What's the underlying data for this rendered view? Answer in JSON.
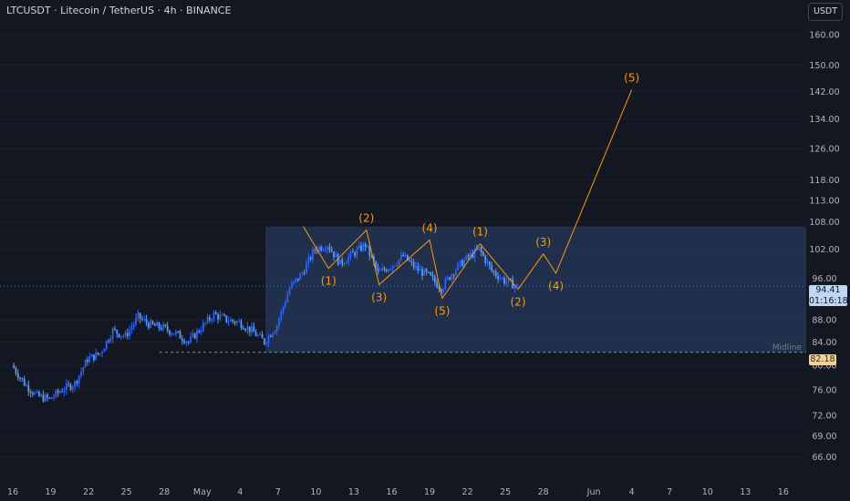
{
  "header": {
    "title": "LTCUSDT · Litecoin / TetherUS · 4h · BINANCE",
    "currency": "USDT"
  },
  "price_badge": {
    "price": "94.41",
    "countdown": "01:16:18"
  },
  "midline": {
    "label": "Midline",
    "price": "82.18"
  },
  "colors": {
    "background": "#131722",
    "up": "#2962ff",
    "down": "#5b9cf6",
    "wave": "#ff9800",
    "box_fill": "#2a4370",
    "axis_text": "#b2b5be"
  },
  "chart_data": {
    "type": "candlestick",
    "y_scale": "log",
    "ylim": [
      63,
      172
    ],
    "x_tick_labels": [
      "16",
      "19",
      "22",
      "25",
      "28",
      "May",
      "4",
      "7",
      "10",
      "13",
      "16",
      "19",
      "22",
      "25",
      "28",
      "Jun",
      "4",
      "7",
      "10",
      "13",
      "16"
    ],
    "y_tick_labels": [
      160.0,
      150.0,
      142.0,
      134.0,
      126.0,
      118.0,
      113.0,
      108.0,
      102.0,
      96.0,
      88.0,
      84.0,
      80.0,
      76.0,
      72.0,
      69.0,
      66.0
    ],
    "price_path": [
      [
        "16",
        80.0
      ],
      [
        "17",
        77.0
      ],
      [
        "18",
        75.0
      ],
      [
        "19",
        74.5
      ],
      [
        "20",
        76.0
      ],
      [
        "21",
        77.0
      ],
      [
        "22",
        81.0
      ],
      [
        "23",
        82.0
      ],
      [
        "24",
        86.0
      ],
      [
        "25",
        85.0
      ],
      [
        "26",
        88.5
      ],
      [
        "27",
        87.0
      ],
      [
        "28",
        86.5
      ],
      [
        "29",
        85.5
      ],
      [
        "30",
        84.0
      ],
      [
        "May 1",
        86.5
      ],
      [
        "May 2",
        89.0
      ],
      [
        "May 3",
        88.0
      ],
      [
        "May 4",
        87.5
      ],
      [
        "May 5",
        86.0
      ],
      [
        "May 6",
        84.0
      ],
      [
        "May 7",
        87.0
      ],
      [
        "May 8",
        94.0
      ],
      [
        "May 9",
        97.0
      ],
      [
        "May 10",
        102.0
      ],
      [
        "May 11",
        103.0
      ],
      [
        "May 12",
        99.0
      ],
      [
        "May 13",
        101.0
      ],
      [
        "May 14",
        103.0
      ],
      [
        "May 15",
        97.0
      ],
      [
        "May 16",
        98.5
      ],
      [
        "May 17",
        100.5
      ],
      [
        "May 18",
        98.0
      ],
      [
        "May 19",
        96.5
      ],
      [
        "May 20",
        94.0
      ],
      [
        "May 21",
        97.5
      ],
      [
        "May 22",
        100.0
      ],
      [
        "May 23",
        102.0
      ],
      [
        "May 24",
        97.5
      ],
      [
        "May 25",
        95.5
      ],
      [
        "May 26",
        94.41
      ]
    ],
    "range_box": {
      "x_start": "May 6",
      "x_end": "Jun 16",
      "top": 107.0,
      "bottom": 82.18
    },
    "midline_value": 82.18,
    "current_price": 94.41,
    "elliott_waves": {
      "path": [
        [
          "May 9",
          107.0
        ],
        [
          "May 11",
          98.0
        ],
        [
          "May 14",
          106.2
        ],
        [
          "May 15",
          94.7
        ],
        [
          "May 19",
          104.0
        ],
        [
          "May 20",
          92.0
        ],
        [
          "May 23",
          103.2
        ],
        [
          "May 26",
          93.8
        ],
        [
          "May 28",
          101.0
        ],
        [
          "May 29",
          97.0
        ],
        [
          "Jun 4",
          142.5
        ]
      ],
      "labels": [
        "(1)",
        "(2)",
        "(3)",
        "(4)",
        "(5)",
        "(1)",
        "(2)",
        "(3)",
        "(4)",
        "(5)"
      ]
    }
  }
}
